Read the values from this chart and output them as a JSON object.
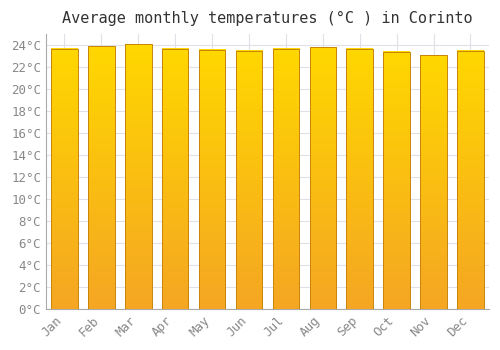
{
  "title": "Average monthly temperatures (°C ) in Corinto",
  "months": [
    "Jan",
    "Feb",
    "Mar",
    "Apr",
    "May",
    "Jun",
    "Jul",
    "Aug",
    "Sep",
    "Oct",
    "Nov",
    "Dec"
  ],
  "values": [
    23.7,
    23.9,
    24.1,
    23.7,
    23.6,
    23.5,
    23.7,
    23.8,
    23.7,
    23.4,
    23.1,
    23.5
  ],
  "bar_color_gradient_bottom": "#F5A623",
  "bar_color_gradient_top": "#FFD700",
  "bar_edge_color": "#C8850A",
  "background_color": "#FFFFFF",
  "plot_bg_color": "#FFFFFF",
  "grid_color": "#E0E0E8",
  "ylim": [
    0,
    25
  ],
  "ytick_step": 2,
  "title_fontsize": 11,
  "tick_fontsize": 9,
  "ytick_color": "#888888",
  "xtick_color": "#888888",
  "title_color": "#333333"
}
